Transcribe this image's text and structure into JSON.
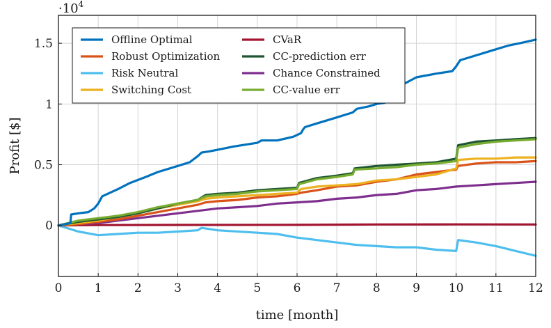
{
  "chart_data": {
    "type": "line",
    "title": "",
    "xlabel": "time [month]",
    "ylabel": "Profit [$]",
    "y_exponent_label": "·10^4",
    "y_exponent_base": "·10",
    "y_exponent_power": "4",
    "xlim": [
      0,
      12
    ],
    "ylim": [
      -0.42,
      1.73
    ],
    "grid": true,
    "legend_position": "top-left",
    "x_ticks": [
      0,
      1,
      2,
      3,
      4,
      5,
      6,
      7,
      8,
      9,
      10,
      11,
      12
    ],
    "x_tick_labels": [
      "0",
      "1",
      "2",
      "3",
      "4",
      "5",
      "6",
      "7",
      "8",
      "9",
      "10",
      "11",
      "12"
    ],
    "y_ticks": [
      0,
      0.5,
      1,
      1.5
    ],
    "y_tick_labels": [
      "0",
      "0.5",
      "1",
      "1.5"
    ],
    "series": [
      {
        "name": "Offline Optimal",
        "color": "#0072BD",
        "points": [
          [
            0,
            0
          ],
          [
            0.3,
            0.02
          ],
          [
            0.32,
            0.09
          ],
          [
            0.5,
            0.1
          ],
          [
            0.75,
            0.11
          ],
          [
            0.9,
            0.14
          ],
          [
            1.0,
            0.18
          ],
          [
            1.1,
            0.24
          ],
          [
            1.3,
            0.27
          ],
          [
            1.5,
            0.3
          ],
          [
            1.8,
            0.35
          ],
          [
            2.2,
            0.4
          ],
          [
            2.5,
            0.44
          ],
          [
            2.8,
            0.47
          ],
          [
            3.0,
            0.49
          ],
          [
            3.3,
            0.52
          ],
          [
            3.5,
            0.57
          ],
          [
            3.6,
            0.6
          ],
          [
            3.8,
            0.61
          ],
          [
            4.1,
            0.63
          ],
          [
            4.4,
            0.65
          ],
          [
            5.0,
            0.68
          ],
          [
            5.1,
            0.7
          ],
          [
            5.5,
            0.7
          ],
          [
            5.9,
            0.73
          ],
          [
            6.1,
            0.76
          ],
          [
            6.15,
            0.79
          ],
          [
            6.2,
            0.81
          ],
          [
            6.5,
            0.84
          ],
          [
            6.9,
            0.88
          ],
          [
            7.4,
            0.93
          ],
          [
            7.5,
            0.96
          ],
          [
            7.8,
            0.98
          ],
          [
            8.0,
            1.0
          ],
          [
            8.2,
            1.01
          ],
          [
            8.3,
            1.03
          ],
          [
            8.6,
            1.15
          ],
          [
            9.0,
            1.22
          ],
          [
            9.5,
            1.25
          ],
          [
            9.9,
            1.27
          ],
          [
            10.0,
            1.31
          ],
          [
            10.1,
            1.36
          ],
          [
            10.3,
            1.38
          ],
          [
            11.0,
            1.45
          ],
          [
            11.3,
            1.48
          ],
          [
            11.6,
            1.5
          ],
          [
            12.0,
            1.53
          ]
        ]
      },
      {
        "name": "CVaR",
        "color": "#A2142F",
        "points": [
          [
            0,
            0
          ],
          [
            0.5,
            0.002
          ],
          [
            1,
            0.003
          ],
          [
            3,
            0.004
          ],
          [
            6,
            0.005
          ],
          [
            8,
            0.008
          ],
          [
            10,
            0.009
          ],
          [
            12,
            0.008
          ]
        ]
      },
      {
        "name": "Robust Optimization",
        "color": "#D95319",
        "points": [
          [
            0,
            0
          ],
          [
            0.5,
            0.01
          ],
          [
            1.0,
            0.03
          ],
          [
            1.5,
            0.05
          ],
          [
            2.0,
            0.08
          ],
          [
            2.5,
            0.11
          ],
          [
            3.0,
            0.14
          ],
          [
            3.5,
            0.17
          ],
          [
            3.7,
            0.19
          ],
          [
            4.0,
            0.2
          ],
          [
            4.5,
            0.21
          ],
          [
            5.0,
            0.23
          ],
          [
            5.5,
            0.24
          ],
          [
            6.0,
            0.26
          ],
          [
            6.1,
            0.27
          ],
          [
            6.5,
            0.29
          ],
          [
            7.0,
            0.32
          ],
          [
            7.5,
            0.33
          ],
          [
            8.0,
            0.36
          ],
          [
            8.5,
            0.38
          ],
          [
            9.0,
            0.42
          ],
          [
            9.5,
            0.44
          ],
          [
            10.0,
            0.46
          ],
          [
            10.05,
            0.49
          ],
          [
            10.5,
            0.51
          ],
          [
            11.0,
            0.52
          ],
          [
            11.5,
            0.52
          ],
          [
            12.0,
            0.53
          ]
        ]
      },
      {
        "name": "CC-prediction err",
        "color": "#1E5631",
        "points": [
          [
            0,
            0
          ],
          [
            0.5,
            0.03
          ],
          [
            1.0,
            0.05
          ],
          [
            1.5,
            0.07
          ],
          [
            2.0,
            0.1
          ],
          [
            2.5,
            0.14
          ],
          [
            3.0,
            0.18
          ],
          [
            3.5,
            0.21
          ],
          [
            3.7,
            0.25
          ],
          [
            4.0,
            0.26
          ],
          [
            4.5,
            0.27
          ],
          [
            5.0,
            0.29
          ],
          [
            5.5,
            0.3
          ],
          [
            6.0,
            0.31
          ],
          [
            6.05,
            0.35
          ],
          [
            6.5,
            0.39
          ],
          [
            7.0,
            0.41
          ],
          [
            7.4,
            0.43
          ],
          [
            7.45,
            0.47
          ],
          [
            8.0,
            0.49
          ],
          [
            8.5,
            0.5
          ],
          [
            9.0,
            0.51
          ],
          [
            9.5,
            0.52
          ],
          [
            10.0,
            0.55
          ],
          [
            10.05,
            0.66
          ],
          [
            10.5,
            0.69
          ],
          [
            11.0,
            0.7
          ],
          [
            11.5,
            0.71
          ],
          [
            12.0,
            0.72
          ]
        ]
      },
      {
        "name": "Risk Neutral",
        "color": "#4DBEEE",
        "points": [
          [
            0,
            0
          ],
          [
            0.5,
            -0.05
          ],
          [
            1.0,
            -0.08
          ],
          [
            1.5,
            -0.07
          ],
          [
            2.0,
            -0.06
          ],
          [
            2.5,
            -0.06
          ],
          [
            3.0,
            -0.05
          ],
          [
            3.5,
            -0.04
          ],
          [
            3.6,
            -0.02
          ],
          [
            4.0,
            -0.04
          ],
          [
            5.0,
            -0.06
          ],
          [
            5.5,
            -0.07
          ],
          [
            6.0,
            -0.1
          ],
          [
            6.5,
            -0.12
          ],
          [
            7.0,
            -0.14
          ],
          [
            7.5,
            -0.16
          ],
          [
            8.0,
            -0.17
          ],
          [
            8.5,
            -0.18
          ],
          [
            9.0,
            -0.18
          ],
          [
            9.5,
            -0.2
          ],
          [
            10.0,
            -0.21
          ],
          [
            10.05,
            -0.12
          ],
          [
            10.5,
            -0.14
          ],
          [
            11.0,
            -0.17
          ],
          [
            11.5,
            -0.21
          ],
          [
            12.0,
            -0.25
          ]
        ]
      },
      {
        "name": "Chance Constrained",
        "color": "#7E2F8E",
        "points": [
          [
            0,
            0
          ],
          [
            0.5,
            0.01
          ],
          [
            1.0,
            0.02
          ],
          [
            1.5,
            0.04
          ],
          [
            2.0,
            0.06
          ],
          [
            2.5,
            0.08
          ],
          [
            3.0,
            0.1
          ],
          [
            3.5,
            0.12
          ],
          [
            4.0,
            0.14
          ],
          [
            4.5,
            0.15
          ],
          [
            5.0,
            0.16
          ],
          [
            5.5,
            0.18
          ],
          [
            6.0,
            0.19
          ],
          [
            6.5,
            0.2
          ],
          [
            7.0,
            0.22
          ],
          [
            7.5,
            0.23
          ],
          [
            8.0,
            0.25
          ],
          [
            8.5,
            0.26
          ],
          [
            9.0,
            0.29
          ],
          [
            9.5,
            0.3
          ],
          [
            10.0,
            0.32
          ],
          [
            10.5,
            0.33
          ],
          [
            11.0,
            0.34
          ],
          [
            11.5,
            0.35
          ],
          [
            12.0,
            0.36
          ]
        ]
      },
      {
        "name": "Switching Cost",
        "color": "#EDB120",
        "points": [
          [
            0,
            0
          ],
          [
            0.5,
            0.02
          ],
          [
            1.0,
            0.04
          ],
          [
            1.5,
            0.07
          ],
          [
            2.0,
            0.1
          ],
          [
            2.5,
            0.14
          ],
          [
            3.0,
            0.17
          ],
          [
            3.5,
            0.2
          ],
          [
            3.7,
            0.22
          ],
          [
            4.0,
            0.23
          ],
          [
            4.5,
            0.24
          ],
          [
            5.0,
            0.25
          ],
          [
            5.5,
            0.26
          ],
          [
            6.0,
            0.27
          ],
          [
            6.1,
            0.3
          ],
          [
            6.5,
            0.32
          ],
          [
            7.0,
            0.33
          ],
          [
            7.5,
            0.34
          ],
          [
            8.0,
            0.37
          ],
          [
            8.5,
            0.38
          ],
          [
            9.0,
            0.4
          ],
          [
            9.5,
            0.42
          ],
          [
            10.0,
            0.47
          ],
          [
            10.05,
            0.54
          ],
          [
            10.5,
            0.55
          ],
          [
            11.0,
            0.55
          ],
          [
            11.5,
            0.56
          ],
          [
            12.0,
            0.56
          ]
        ]
      },
      {
        "name": "CC-value err",
        "color": "#77AC30",
        "points": [
          [
            0,
            0
          ],
          [
            0.5,
            0.04
          ],
          [
            1.0,
            0.06
          ],
          [
            1.5,
            0.08
          ],
          [
            2.0,
            0.11
          ],
          [
            2.5,
            0.15
          ],
          [
            3.0,
            0.18
          ],
          [
            3.5,
            0.21
          ],
          [
            3.7,
            0.24
          ],
          [
            4.0,
            0.25
          ],
          [
            4.5,
            0.26
          ],
          [
            5.0,
            0.28
          ],
          [
            5.5,
            0.29
          ],
          [
            6.0,
            0.3
          ],
          [
            6.05,
            0.34
          ],
          [
            6.5,
            0.38
          ],
          [
            7.0,
            0.4
          ],
          [
            7.4,
            0.42
          ],
          [
            7.45,
            0.46
          ],
          [
            8.0,
            0.47
          ],
          [
            8.5,
            0.48
          ],
          [
            9.0,
            0.5
          ],
          [
            9.5,
            0.51
          ],
          [
            10.0,
            0.53
          ],
          [
            10.05,
            0.64
          ],
          [
            10.5,
            0.67
          ],
          [
            11.0,
            0.69
          ],
          [
            11.5,
            0.7
          ],
          [
            12.0,
            0.71
          ]
        ]
      }
    ]
  }
}
